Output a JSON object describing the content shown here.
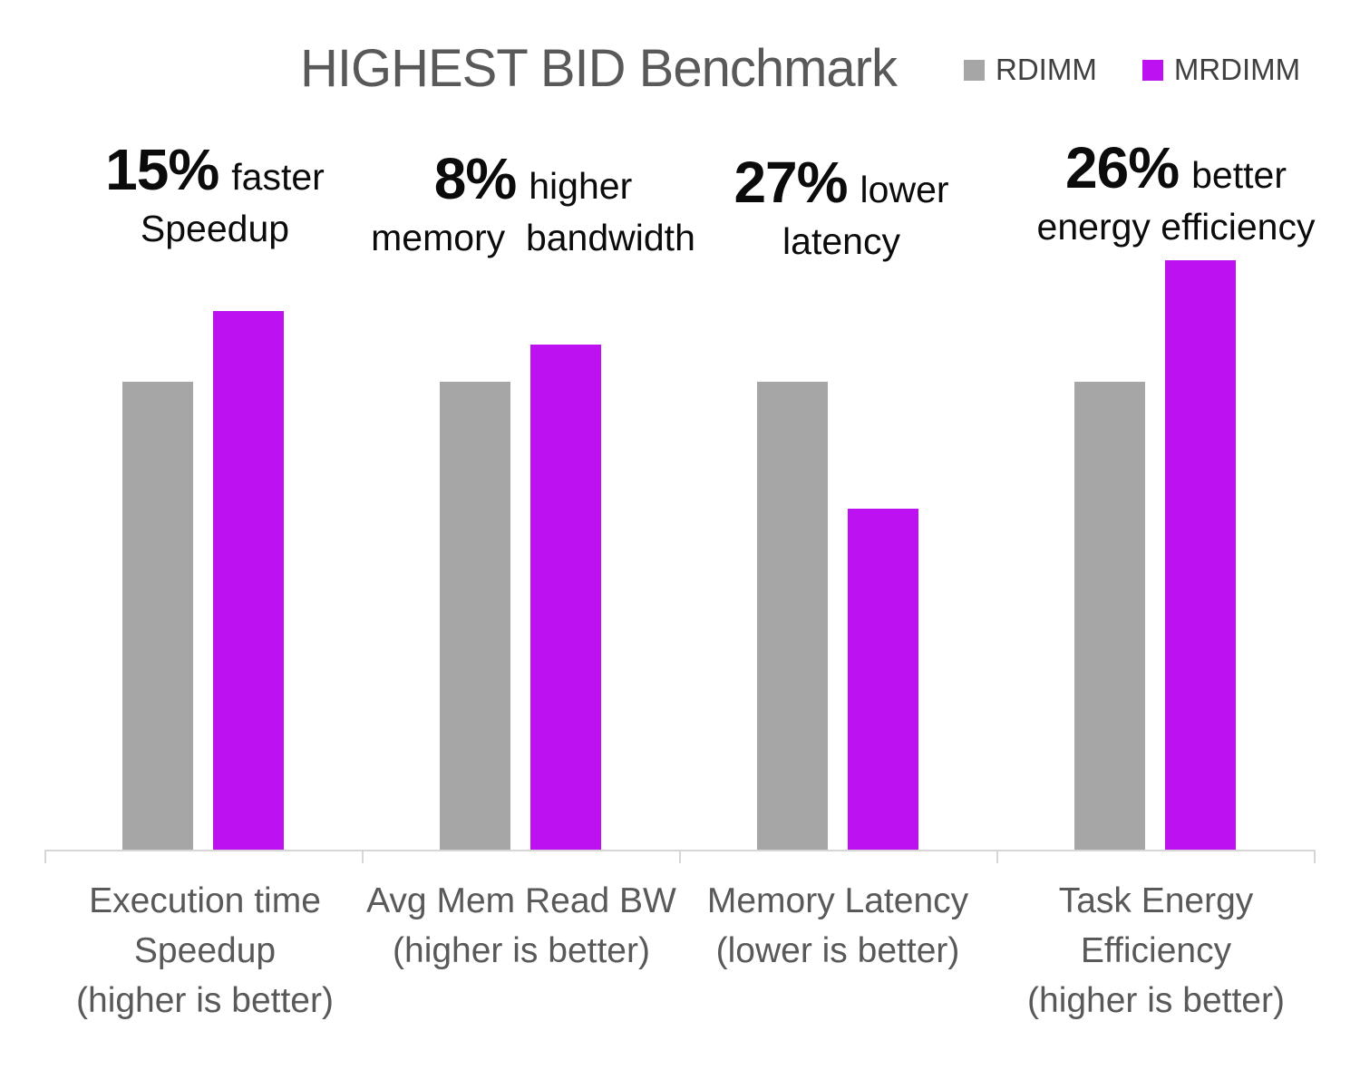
{
  "title": "HIGHEST BID Benchmark",
  "legend": {
    "items": [
      {
        "label": "RDIMM",
        "color": "#a6a6a6"
      },
      {
        "label": "MRDIMM",
        "color": "#be11f2"
      }
    ]
  },
  "annotations": [
    {
      "stat": "15%",
      "qualifier": "faster",
      "line2": "Speedup"
    },
    {
      "stat": "8%",
      "qualifier": "higher",
      "line2": "memory  bandwidth"
    },
    {
      "stat": "27%",
      "qualifier": "lower",
      "line2": "latency"
    },
    {
      "stat": "26%",
      "qualifier": "better",
      "line2": "energy efficiency"
    }
  ],
  "x_axis_labels": [
    {
      "lines": [
        "Execution time",
        "Speedup",
        "(higher is better)"
      ]
    },
    {
      "lines": [
        "Avg Mem Read BW",
        "(higher is better)"
      ]
    },
    {
      "lines": [
        "Memory Latency",
        "(lower is better)"
      ]
    },
    {
      "lines": [
        "Task Energy",
        "Efficiency",
        "(higher is better)"
      ]
    }
  ],
  "chart_data": {
    "type": "bar",
    "title": "HIGHEST BID Benchmark",
    "categories": [
      "Execution time Speedup (higher is better)",
      "Avg Mem Read BW (higher is better)",
      "Memory Latency (lower is better)",
      "Task Energy Efficiency (higher is better)"
    ],
    "series": [
      {
        "name": "RDIMM",
        "color": "#a6a6a6",
        "values": [
          1.0,
          1.0,
          1.0,
          1.0
        ]
      },
      {
        "name": "MRDIMM",
        "color": "#be11f2",
        "values": [
          1.15,
          1.08,
          0.73,
          1.26
        ]
      }
    ],
    "value_basis": "normalized to RDIMM = 1.0",
    "xlabel": "",
    "ylabel": "",
    "ylim": [
      0,
      1.35
    ],
    "grid": false,
    "y_axis_visible": false,
    "legend_position": "top-right",
    "annotations_text": [
      "15% faster Speedup",
      "8% higher memory bandwidth",
      "27% lower latency",
      "26% better energy efficiency"
    ]
  }
}
